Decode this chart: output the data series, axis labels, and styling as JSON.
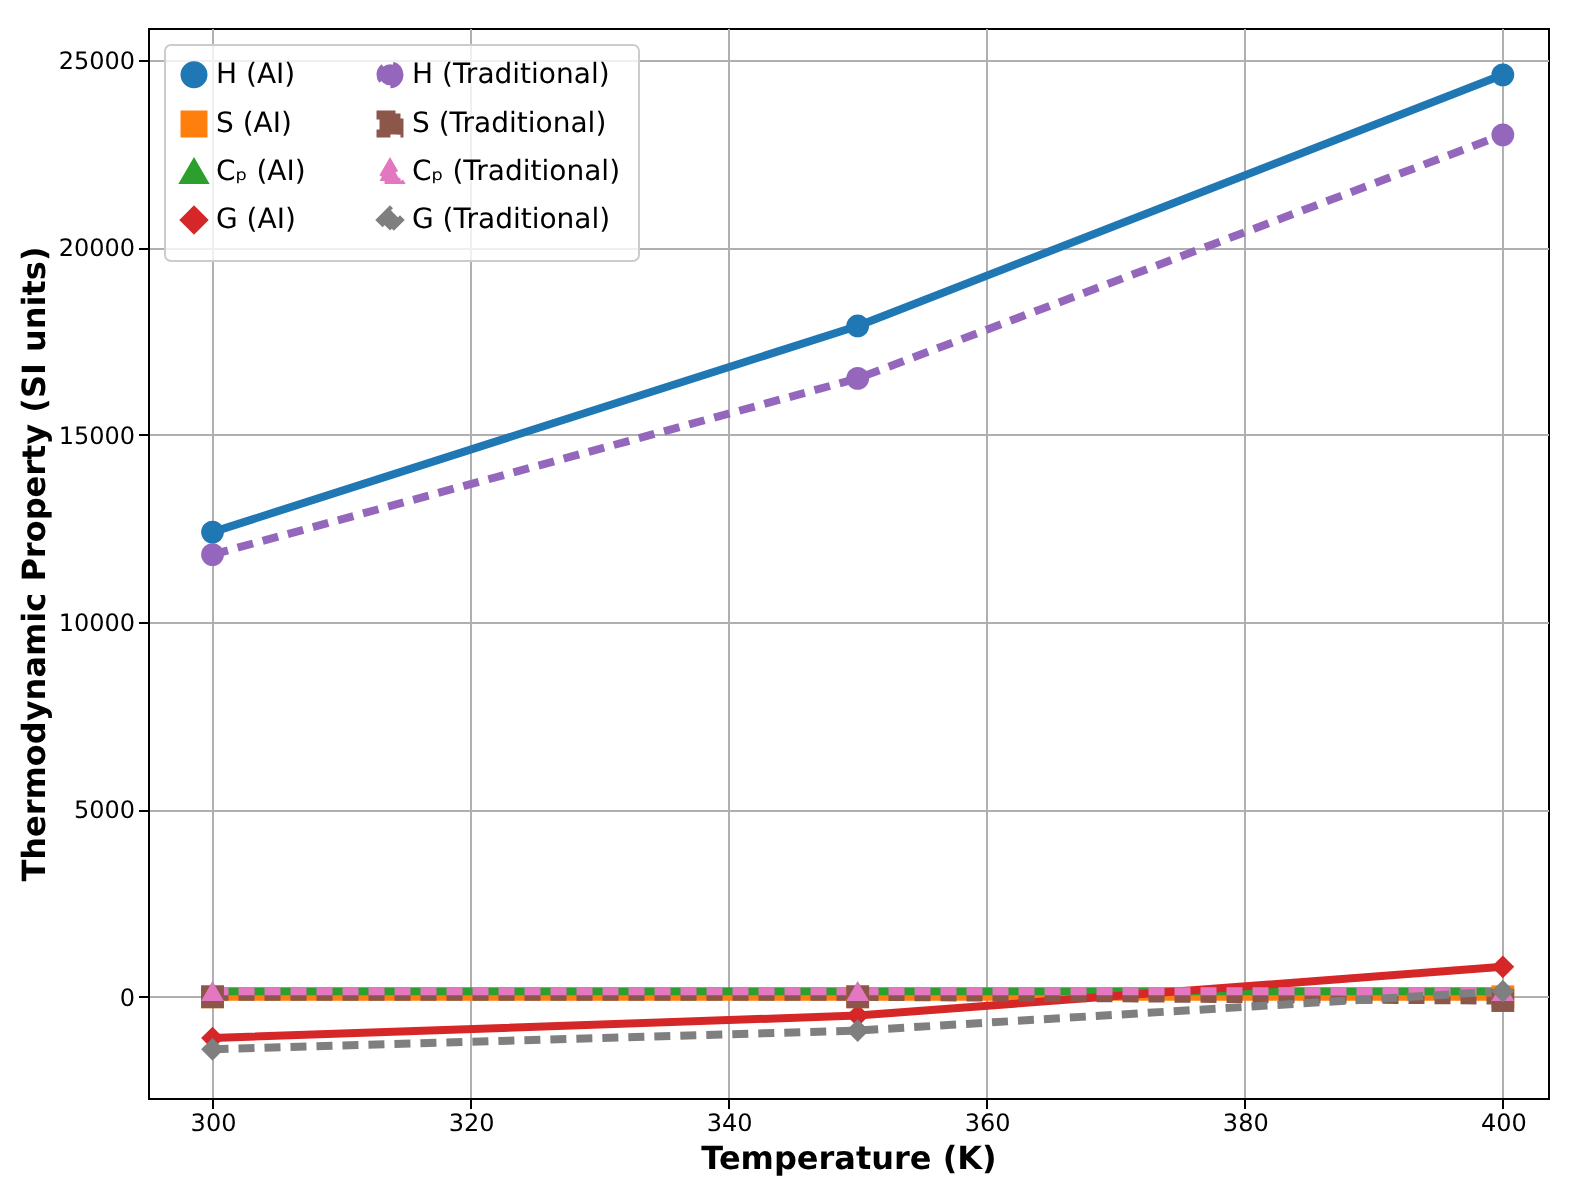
{
  "chart_data": {
    "type": "line",
    "xlabel": "Temperature (K)",
    "ylabel": "Thermodynamic Property (SI units)",
    "x": [
      300,
      350,
      400
    ],
    "series": [
      {
        "name": "H (AI)",
        "color": "#1f77b4",
        "marker": "circle",
        "line_style": "solid",
        "values": [
          12400,
          17900,
          24600
        ]
      },
      {
        "name": "S (AI)",
        "color": "#ff7f0e",
        "marker": "square",
        "line_style": "solid",
        "values": [
          0,
          0,
          0
        ]
      },
      {
        "name": "Cₚ (AI)",
        "color": "#2ca02c",
        "marker": "triangle",
        "line_style": "solid",
        "values": [
          150,
          150,
          150
        ]
      },
      {
        "name": "G (AI)",
        "color": "#d62728",
        "marker": "diamond",
        "line_style": "solid",
        "values": [
          -1100,
          -500,
          800
        ]
      },
      {
        "name": "H (Traditional)",
        "color": "#9467bd",
        "marker": "circle",
        "line_style": "dashed",
        "values": [
          11800,
          16500,
          23000
        ]
      },
      {
        "name": "S (Traditional)",
        "color": "#8c564b",
        "marker": "square",
        "line_style": "dashed",
        "values": [
          0,
          0,
          -100
        ]
      },
      {
        "name": "Cₚ (Traditional)",
        "color": "#e377c2",
        "marker": "triangle",
        "line_style": "dashed",
        "values": [
          150,
          150,
          150
        ]
      },
      {
        "name": "G (Traditional)",
        "color": "#7f7f7f",
        "marker": "diamond",
        "line_style": "dashed",
        "values": [
          -1400,
          -900,
          150
        ]
      }
    ],
    "xlim": [
      295,
      403.5
    ],
    "xticks": [
      300,
      320,
      340,
      360,
      380,
      400
    ],
    "ylim": [
      -2700,
      25850
    ],
    "yticks": [
      0,
      5000,
      10000,
      15000,
      20000,
      25000
    ],
    "grid": true,
    "legend": "top left"
  }
}
